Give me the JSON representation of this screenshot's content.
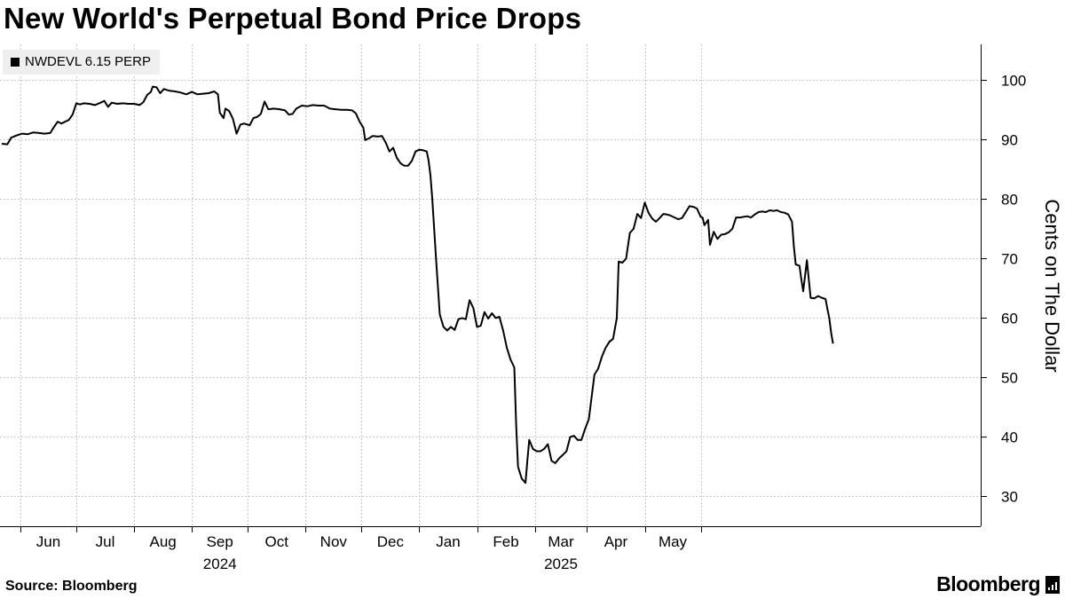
{
  "title": "New World's Perpetual Bond Price Drops",
  "source": "Source: Bloomberg",
  "brand": "Bloomberg",
  "chart_data": {
    "type": "line",
    "title": "New World's Perpetual Bond Price Drops",
    "ylabel": "Cents on The Dollar",
    "xlabel": "",
    "ylim": [
      25,
      106
    ],
    "yticks": [
      30,
      40,
      50,
      60,
      70,
      80,
      90,
      100
    ],
    "grid": true,
    "legend_position": "top-left",
    "line_color": "#000000",
    "month_labels": [
      "Jun",
      "Jul",
      "Aug",
      "Sep",
      "Oct",
      "Nov",
      "Dec",
      "Jan",
      "Feb",
      "Mar",
      "Apr",
      "May"
    ],
    "year_labels": [
      {
        "label": "2024",
        "under": "Sep"
      },
      {
        "label": "2025",
        "under": "Mar"
      }
    ],
    "series": [
      {
        "name": "NWDEVL 6.15 PERP",
        "x_unit": "days since 2024-05-22",
        "points": [
          [
            0,
            89.3
          ],
          [
            3,
            89.2
          ],
          [
            5,
            90.3
          ],
          [
            8,
            90.7
          ],
          [
            11,
            91.0
          ],
          [
            14,
            90.9
          ],
          [
            17,
            91.2
          ],
          [
            20,
            91.1
          ],
          [
            23,
            91.0
          ],
          [
            26,
            91.1
          ],
          [
            28,
            92.1
          ],
          [
            30,
            93.0
          ],
          [
            32,
            92.7
          ],
          [
            34,
            93.0
          ],
          [
            36,
            93.3
          ],
          [
            38,
            94.2
          ],
          [
            40,
            96.1
          ],
          [
            42,
            95.9
          ],
          [
            44,
            96.1
          ],
          [
            47,
            96.0
          ],
          [
            50,
            95.8
          ],
          [
            53,
            96.2
          ],
          [
            55,
            96.5
          ],
          [
            57,
            95.5
          ],
          [
            59,
            96.2
          ],
          [
            62,
            96.0
          ],
          [
            65,
            96.1
          ],
          [
            68,
            96.0
          ],
          [
            71,
            96.0
          ],
          [
            74,
            95.8
          ],
          [
            76,
            96.3
          ],
          [
            78,
            97.5
          ],
          [
            80,
            98.0
          ],
          [
            81,
            98.9
          ],
          [
            83,
            98.8
          ],
          [
            85,
            97.8
          ],
          [
            87,
            98.5
          ],
          [
            90,
            98.2
          ],
          [
            93,
            98.1
          ],
          [
            96,
            97.9
          ],
          [
            99,
            97.6
          ],
          [
            102,
            98.0
          ],
          [
            105,
            97.6
          ],
          [
            108,
            97.7
          ],
          [
            111,
            97.8
          ],
          [
            114,
            98.1
          ],
          [
            116,
            97.6
          ],
          [
            117,
            94.5
          ],
          [
            119,
            93.6
          ],
          [
            120,
            95.2
          ],
          [
            122,
            94.8
          ],
          [
            124,
            93.5
          ],
          [
            126,
            91.0
          ],
          [
            128,
            92.5
          ],
          [
            130,
            92.7
          ],
          [
            133,
            92.4
          ],
          [
            135,
            93.6
          ],
          [
            137,
            93.8
          ],
          [
            139,
            94.3
          ],
          [
            141,
            96.4
          ],
          [
            143,
            95.1
          ],
          [
            146,
            95.2
          ],
          [
            149,
            95.1
          ],
          [
            152,
            94.9
          ],
          [
            154,
            94.2
          ],
          [
            156,
            94.3
          ],
          [
            158,
            95.2
          ],
          [
            161,
            95.7
          ],
          [
            164,
            95.6
          ],
          [
            167,
            95.8
          ],
          [
            170,
            95.7
          ],
          [
            173,
            95.7
          ],
          [
            176,
            95.2
          ],
          [
            179,
            95.1
          ],
          [
            182,
            95.0
          ],
          [
            185,
            95.0
          ],
          [
            188,
            94.9
          ],
          [
            190,
            94.4
          ],
          [
            192,
            93.0
          ],
          [
            194,
            92.0
          ],
          [
            195,
            89.9
          ],
          [
            197,
            90.2
          ],
          [
            199,
            90.6
          ],
          [
            202,
            90.5
          ],
          [
            204,
            90.6
          ],
          [
            206,
            89.5
          ],
          [
            208,
            88.0
          ],
          [
            210,
            88.6
          ],
          [
            212,
            86.9
          ],
          [
            214,
            86.0
          ],
          [
            216,
            85.6
          ],
          [
            218,
            85.6
          ],
          [
            220,
            86.4
          ],
          [
            222,
            88.0
          ],
          [
            224,
            88.3
          ],
          [
            226,
            88.2
          ],
          [
            228,
            88.0
          ],
          [
            229,
            86.5
          ],
          [
            230,
            84.0
          ],
          [
            231,
            80.0
          ],
          [
            233,
            70.0
          ],
          [
            235,
            60.6
          ],
          [
            237,
            58.5
          ],
          [
            239,
            57.9
          ],
          [
            241,
            58.5
          ],
          [
            243,
            58.0
          ],
          [
            245,
            59.8
          ],
          [
            247,
            60.0
          ],
          [
            249,
            59.8
          ],
          [
            251,
            63.0
          ],
          [
            253,
            61.7
          ],
          [
            255,
            58.5
          ],
          [
            257,
            58.7
          ],
          [
            259,
            61.0
          ],
          [
            261,
            59.9
          ],
          [
            263,
            60.8
          ],
          [
            265,
            60.0
          ],
          [
            267,
            60.2
          ],
          [
            269,
            57.9
          ],
          [
            271,
            55.0
          ],
          [
            273,
            53.0
          ],
          [
            275,
            51.7
          ],
          [
            276,
            42.0
          ],
          [
            277,
            35.0
          ],
          [
            279,
            33.0
          ],
          [
            281,
            32.3
          ],
          [
            282,
            36.0
          ],
          [
            283,
            39.5
          ],
          [
            285,
            38.0
          ],
          [
            287,
            37.6
          ],
          [
            289,
            37.6
          ],
          [
            291,
            38.0
          ],
          [
            293,
            38.8
          ],
          [
            295,
            36.0
          ],
          [
            297,
            35.6
          ],
          [
            299,
            36.4
          ],
          [
            301,
            37.0
          ],
          [
            303,
            37.6
          ],
          [
            305,
            40.0
          ],
          [
            307,
            40.2
          ],
          [
            309,
            39.5
          ],
          [
            311,
            39.5
          ],
          [
            313,
            41.4
          ],
          [
            315,
            43.0
          ],
          [
            317,
            48.0
          ],
          [
            318,
            50.5
          ],
          [
            320,
            51.5
          ],
          [
            322,
            53.5
          ],
          [
            324,
            55.0
          ],
          [
            326,
            56.0
          ],
          [
            328,
            56.5
          ],
          [
            330,
            60.0
          ],
          [
            331,
            69.5
          ],
          [
            333,
            69.3
          ],
          [
            335,
            70.0
          ],
          [
            337,
            74.3
          ],
          [
            339,
            75.0
          ],
          [
            341,
            77.5
          ],
          [
            343,
            76.8
          ],
          [
            345,
            79.4
          ],
          [
            347,
            77.7
          ],
          [
            349,
            76.7
          ],
          [
            351,
            76.2
          ],
          [
            353,
            76.8
          ],
          [
            355,
            77.5
          ],
          [
            357,
            77.4
          ],
          [
            359,
            77.2
          ],
          [
            361,
            76.9
          ],
          [
            363,
            76.6
          ],
          [
            365,
            76.8
          ],
          [
            367,
            77.8
          ],
          [
            369,
            78.8
          ],
          [
            371,
            78.7
          ],
          [
            373,
            78.4
          ],
          [
            375,
            77.0
          ],
          [
            376,
            76.9
          ],
          [
            377,
            75.6
          ],
          [
            379,
            76.5
          ],
          [
            380,
            72.3
          ],
          [
            382,
            74.5
          ],
          [
            384,
            73.3
          ],
          [
            386,
            74.0
          ],
          [
            388,
            74.1
          ],
          [
            390,
            74.4
          ],
          [
            392,
            75.0
          ],
          [
            394,
            76.9
          ],
          [
            396,
            76.9
          ],
          [
            398,
            77.0
          ],
          [
            400,
            77.1
          ],
          [
            402,
            76.9
          ],
          [
            404,
            77.4
          ],
          [
            406,
            77.8
          ],
          [
            408,
            77.9
          ],
          [
            410,
            77.8
          ],
          [
            412,
            78.1
          ],
          [
            414,
            78.0
          ],
          [
            416,
            78.1
          ],
          [
            418,
            77.8
          ],
          [
            420,
            77.7
          ],
          [
            422,
            77.4
          ],
          [
            424,
            76.2
          ],
          [
            425,
            72.0
          ],
          [
            426,
            69.0
          ],
          [
            428,
            68.8
          ],
          [
            429,
            66.5
          ],
          [
            430,
            64.5
          ],
          [
            432,
            69.7
          ],
          [
            433,
            66.5
          ],
          [
            434,
            63.4
          ],
          [
            436,
            63.3
          ],
          [
            438,
            63.7
          ],
          [
            440,
            63.4
          ],
          [
            442,
            63.2
          ],
          [
            443,
            61.5
          ],
          [
            444,
            60.0
          ],
          [
            445,
            57.5
          ],
          [
            446,
            55.7
          ]
        ]
      }
    ]
  }
}
